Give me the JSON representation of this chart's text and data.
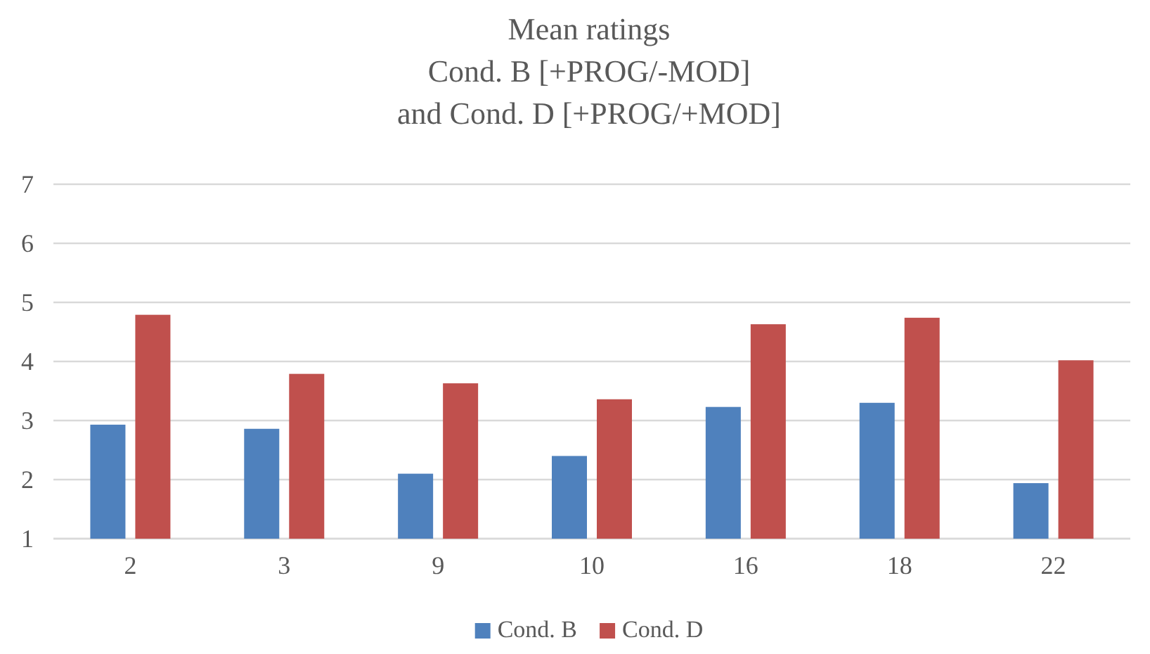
{
  "chart_data": {
    "type": "bar",
    "title": "Mean ratings\nCond. B [+PROG/-MOD]\nand Cond. D [+PROG/+MOD]",
    "categories": [
      "2",
      "3",
      "9",
      "10",
      "16",
      "18",
      "22"
    ],
    "series": [
      {
        "name": "Cond. B",
        "color": "#4f81bd",
        "values": [
          2.93,
          2.86,
          2.1,
          2.4,
          3.23,
          3.3,
          1.94
        ]
      },
      {
        "name": "Cond. D",
        "color": "#c0504d",
        "values": [
          4.79,
          3.79,
          3.63,
          3.36,
          4.63,
          4.74,
          4.02
        ]
      }
    ],
    "ylim": [
      1,
      7
    ],
    "yticks": [
      1,
      2,
      3,
      4,
      5,
      6,
      7
    ],
    "grid": "y",
    "legend": "bottom"
  }
}
